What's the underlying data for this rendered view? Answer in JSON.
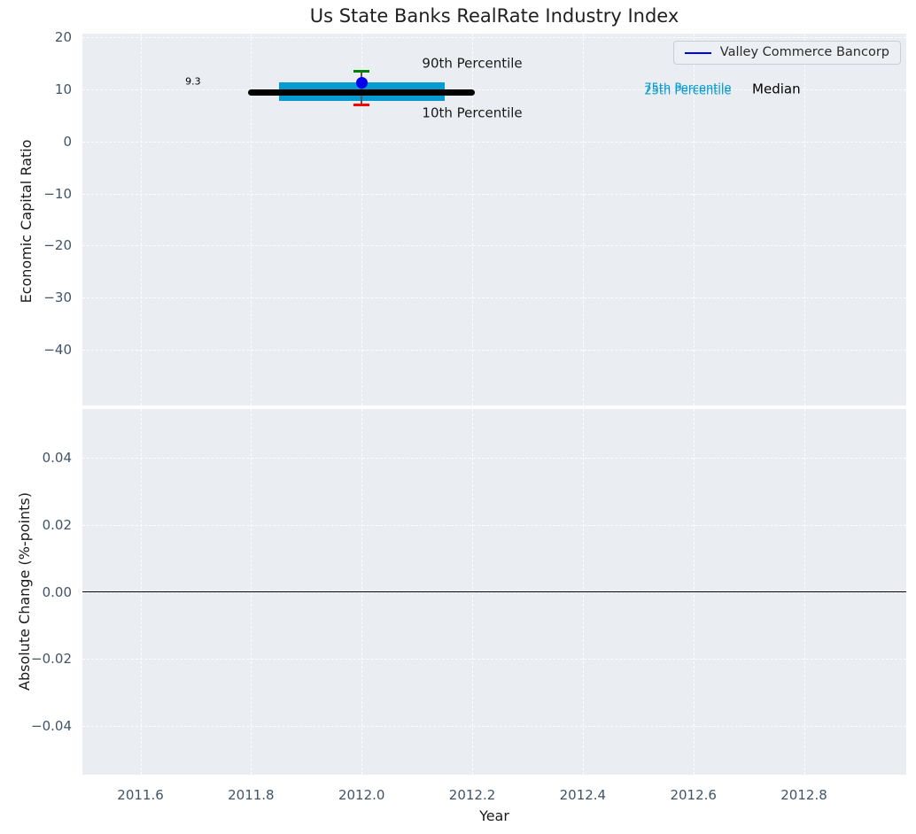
{
  "title": "Us State Banks RealRate Industry Index",
  "legend": {
    "label": "Valley Commerce Bancorp",
    "line_color": "#0000ee"
  },
  "colors": {
    "plot_bg": "#eaedf1",
    "grid": "#ffffff",
    "tick_label": "#415469",
    "band": "#089bd1",
    "median_line": "#000000",
    "marker": "#0000ee",
    "cap_90th": "#008000",
    "cap_10th": "#ff0000",
    "errorbar_stem": "#555555",
    "zero_line": "#000000"
  },
  "chart_data": [
    {
      "type": "line",
      "title": "Us State Banks RealRate Industry Index",
      "xlabel": "Year",
      "ylabel": "Economic Capital Ratio",
      "grid": true,
      "legend_position": "upper right",
      "xlim": [
        2011.495,
        2012.985
      ],
      "ylim": [
        -50.6,
        20.6
      ],
      "x_ticks": [
        2011.6,
        2011.8,
        2012.0,
        2012.2,
        2012.4,
        2012.6,
        2012.8
      ],
      "x_tick_labels": [
        "2011.6",
        "2011.8",
        "2012.0",
        "2012.2",
        "2012.4",
        "2012.6",
        "2012.8"
      ],
      "show_x_tick_labels": false,
      "y_ticks": [
        20,
        10,
        0,
        -10,
        -20,
        -30,
        -40
      ],
      "y_tick_labels": [
        "20",
        "10",
        "0",
        "−10",
        "−20",
        "−30",
        "−40"
      ],
      "series": [
        {
          "name": "Valley Commerce Bancorp",
          "mark": "point",
          "x": 2012.0,
          "y": 11.2,
          "color": "#0000ee"
        },
        {
          "name": "Median",
          "mark": "segment",
          "x_start": 2011.8,
          "x_end": 2012.2,
          "y": 9.3,
          "color": "#000000"
        },
        {
          "name": "25th-75th Percentile band",
          "mark": "band",
          "x_start": 2011.85,
          "x_end": 2012.15,
          "y_low": 7.8,
          "y_high": 11.3,
          "color": "#089bd1"
        },
        {
          "name": "10th-90th Percentile errorbar",
          "mark": "errorbar",
          "x": 2012.0,
          "y_low": 6.9,
          "y_high": 13.4,
          "cap_high_color": "#008000",
          "cap_low_color": "#ff0000",
          "stem_color": "#555555"
        }
      ],
      "annotations": [
        {
          "name": "median-value-label",
          "text": "9.3",
          "x": 2011.695,
          "y": 11.45,
          "color": "#000000",
          "size": 11
        },
        {
          "name": "p90-label",
          "text": "90th Percentile",
          "x": 2012.2,
          "y": 14.8,
          "color": "#1a1a1a",
          "size": 15
        },
        {
          "name": "p10-label",
          "text": "10th Percentile",
          "x": 2012.2,
          "y": 5.3,
          "color": "#1a1a1a",
          "size": 15
        },
        {
          "name": "p75-label",
          "text": "75th Percentile",
          "x": 2012.59,
          "y": 10.15,
          "color": "#089bd1",
          "size": 13
        },
        {
          "name": "p25-label",
          "text": "25th Percentile",
          "x": 2012.59,
          "y": 9.55,
          "color": "#089bd1",
          "size": 13
        },
        {
          "name": "median-label",
          "text": "Median",
          "x": 2012.75,
          "y": 9.95,
          "color": "#000000",
          "size": 15
        }
      ]
    },
    {
      "type": "line",
      "title": "",
      "xlabel": "Year",
      "ylabel": "Absolute Change (%-points)",
      "grid": true,
      "xlim": [
        2011.495,
        2012.985
      ],
      "ylim": [
        -0.0546,
        0.0546
      ],
      "x_ticks": [
        2011.6,
        2011.8,
        2012.0,
        2012.2,
        2012.4,
        2012.6,
        2012.8
      ],
      "x_tick_labels": [
        "2011.6",
        "2011.8",
        "2012.0",
        "2012.2",
        "2012.4",
        "2012.6",
        "2012.8"
      ],
      "show_x_tick_labels": true,
      "y_ticks": [
        0.04,
        0.02,
        0.0,
        -0.02,
        -0.04
      ],
      "y_tick_labels": [
        "0.04",
        "0.02",
        "0.00",
        "−0.02",
        "−0.04"
      ],
      "zero_line": {
        "y": 0.0,
        "color": "#000000"
      },
      "series": []
    }
  ]
}
